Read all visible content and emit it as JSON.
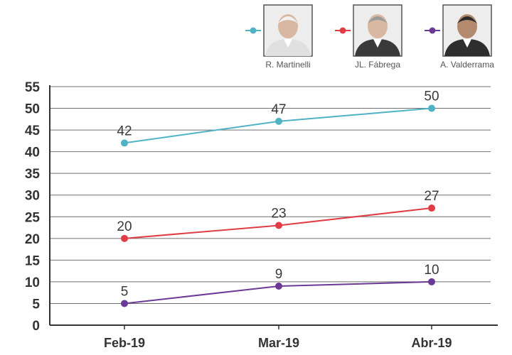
{
  "chart_data": {
    "type": "line",
    "categories": [
      "Feb-19",
      "Mar-19",
      "Abr-19"
    ],
    "series": [
      {
        "name": "R. Martinelli",
        "values": [
          42,
          47,
          50
        ],
        "color": "#4fb3c4",
        "photo": "portrait-martinelli"
      },
      {
        "name": "JL. Fábrega",
        "values": [
          20,
          23,
          27
        ],
        "color": "#e03c46",
        "photo": "portrait-fabrega"
      },
      {
        "name": "A. Valderrama",
        "values": [
          5,
          9,
          10
        ],
        "color": "#6b3a96",
        "photo": "portrait-valderrama"
      }
    ],
    "yticks": [
      0,
      5,
      10,
      15,
      20,
      25,
      30,
      35,
      40,
      45,
      50,
      55
    ],
    "ylim": [
      0,
      55
    ],
    "grid": true,
    "legend_position": "top-right"
  }
}
